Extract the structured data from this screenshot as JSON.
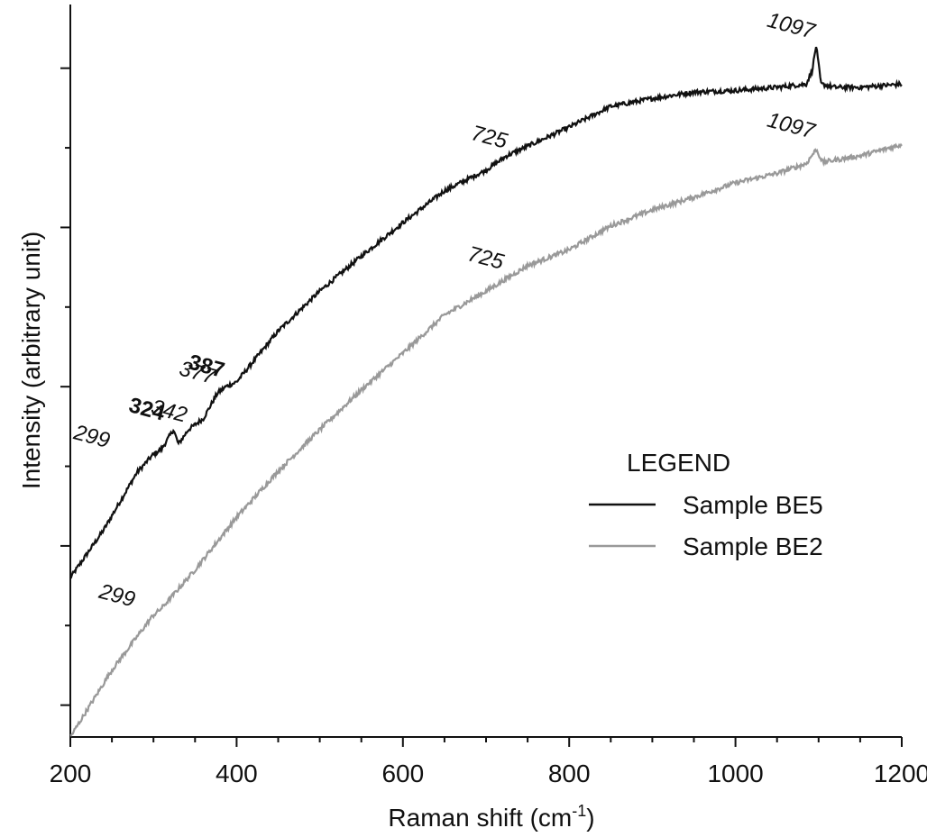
{
  "chart_data": {
    "type": "line",
    "xlabel": "Raman shift (cm",
    "xlabel_superscript": "-1",
    "xlabel_suffix": ")",
    "ylabel": "Intensity (arbitrary unit)",
    "xlim": [
      200,
      1200
    ],
    "ylim": [
      0,
      46
    ],
    "x_ticks": [
      200,
      400,
      600,
      800,
      1000,
      1200
    ],
    "x_tick_labels": [
      "200",
      "400",
      "600",
      "800",
      "1000",
      "1200"
    ],
    "y_ticks_shown_without_labels": true,
    "legend": {
      "title": "LEGEND",
      "placement": "center-right",
      "entries": [
        "Sample BE5",
        "Sample BE2"
      ]
    },
    "series": [
      {
        "name": "Sample BE5",
        "color": "#111111",
        "points": [
          [
            200,
            10.0
          ],
          [
            240,
            13.0
          ],
          [
            280,
            16.6
          ],
          [
            299,
            17.7
          ],
          [
            310,
            18.1
          ],
          [
            324,
            19.3
          ],
          [
            330,
            18.4
          ],
          [
            342,
            19.3
          ],
          [
            360,
            20.0
          ],
          [
            377,
            21.6
          ],
          [
            387,
            22.0
          ],
          [
            400,
            22.3
          ],
          [
            450,
            25.5
          ],
          [
            500,
            28.0
          ],
          [
            550,
            30.2
          ],
          [
            600,
            32.3
          ],
          [
            650,
            34.3
          ],
          [
            700,
            35.6
          ],
          [
            725,
            36.5
          ],
          [
            750,
            37.1
          ],
          [
            800,
            38.3
          ],
          [
            850,
            39.6
          ],
          [
            900,
            40.1
          ],
          [
            950,
            40.5
          ],
          [
            1000,
            40.6
          ],
          [
            1050,
            40.8
          ],
          [
            1085,
            41.0
          ],
          [
            1092,
            41.8
          ],
          [
            1097,
            43.4
          ],
          [
            1103,
            41.0
          ],
          [
            1120,
            40.8
          ],
          [
            1150,
            40.8
          ],
          [
            1200,
            41.0
          ]
        ]
      },
      {
        "name": "Sample BE2",
        "color": "#999999",
        "points": [
          [
            200,
            0.0
          ],
          [
            250,
            4.2
          ],
          [
            299,
            7.6
          ],
          [
            310,
            8.1
          ],
          [
            350,
            10.5
          ],
          [
            400,
            13.8
          ],
          [
            450,
            16.7
          ],
          [
            500,
            19.3
          ],
          [
            550,
            21.8
          ],
          [
            600,
            24.1
          ],
          [
            650,
            26.5
          ],
          [
            700,
            28.0
          ],
          [
            725,
            28.8
          ],
          [
            750,
            29.6
          ],
          [
            800,
            30.6
          ],
          [
            850,
            32.1
          ],
          [
            900,
            33.1
          ],
          [
            950,
            33.9
          ],
          [
            1000,
            34.8
          ],
          [
            1050,
            35.4
          ],
          [
            1085,
            36.0
          ],
          [
            1097,
            36.9
          ],
          [
            1105,
            36.1
          ],
          [
            1150,
            36.5
          ],
          [
            1200,
            37.2
          ]
        ]
      }
    ],
    "annotations": [
      {
        "text": "299",
        "x": 299,
        "series": "Sample BE5",
        "bold": false
      },
      {
        "text": "324",
        "x": 324,
        "series": "Sample BE5",
        "bold": true
      },
      {
        "text": "342",
        "x": 342,
        "series": "Sample BE5",
        "bold": false
      },
      {
        "text": "377",
        "x": 377,
        "series": "Sample BE5",
        "bold": false
      },
      {
        "text": "387",
        "x": 387,
        "series": "Sample BE5",
        "bold": true
      },
      {
        "text": "725",
        "x": 725,
        "series": "Sample BE5",
        "bold": false
      },
      {
        "text": "1097",
        "x": 1097,
        "series": "Sample BE5",
        "bold": false
      },
      {
        "text": "299",
        "x": 299,
        "series": "Sample BE2",
        "bold": false
      },
      {
        "text": "725",
        "x": 725,
        "series": "Sample BE2",
        "bold": false
      },
      {
        "text": "1097",
        "x": 1097,
        "series": "Sample BE2",
        "bold": false
      }
    ]
  }
}
